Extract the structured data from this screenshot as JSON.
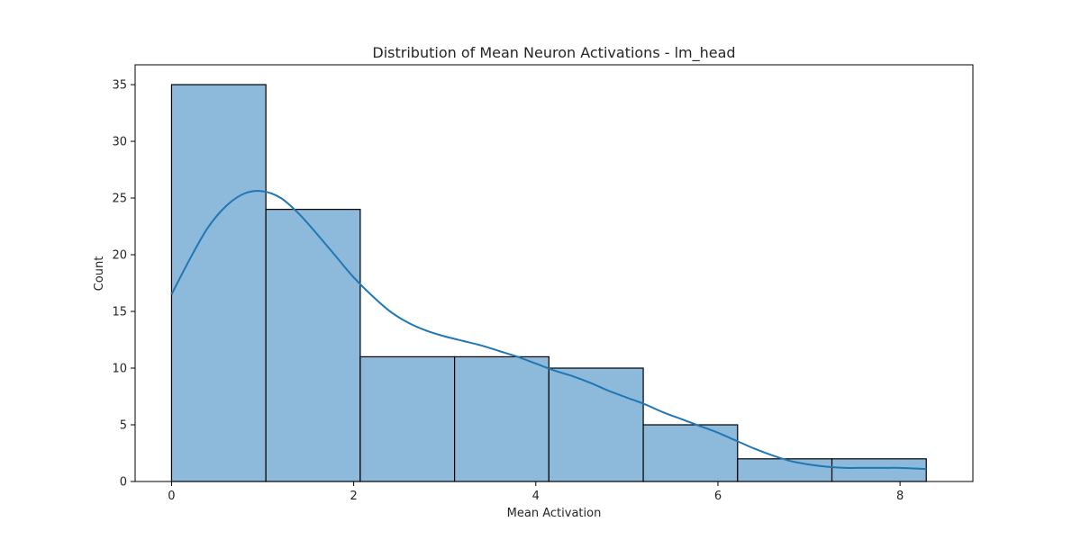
{
  "chart_data": {
    "type": "bar",
    "title": "Distribution of Mean Neuron Activations - lm_head",
    "xlabel": "Mean Activation",
    "ylabel": "Count",
    "xlim": [
      -0.4,
      8.8
    ],
    "ylim": [
      0,
      36.75
    ],
    "xticks": [
      0,
      2,
      4,
      6,
      8
    ],
    "yticks": [
      0,
      5,
      10,
      15,
      20,
      25,
      30,
      35
    ],
    "bin_edges": [
      0.0,
      1.036,
      2.072,
      3.108,
      4.144,
      5.18,
      6.216,
      7.252,
      8.288
    ],
    "counts": [
      35,
      24,
      11,
      11,
      10,
      5,
      2,
      2
    ],
    "kde": {
      "x": [
        0.0,
        0.2,
        0.4,
        0.6,
        0.8,
        1.0,
        1.2,
        1.4,
        1.6,
        1.8,
        2.0,
        2.2,
        2.4,
        2.6,
        2.8,
        3.0,
        3.2,
        3.4,
        3.6,
        3.8,
        4.0,
        4.2,
        4.4,
        4.6,
        4.8,
        5.0,
        5.2,
        5.4,
        5.6,
        5.8,
        6.0,
        6.2,
        6.4,
        6.6,
        6.8,
        7.0,
        7.2,
        7.4,
        7.6,
        7.8,
        8.0,
        8.288
      ],
      "y": [
        16.5,
        19.6,
        22.4,
        24.3,
        25.4,
        25.6,
        25.0,
        23.6,
        21.8,
        19.9,
        18.0,
        16.4,
        15.0,
        14.0,
        13.3,
        12.8,
        12.4,
        12.0,
        11.5,
        11.0,
        10.4,
        9.8,
        9.3,
        8.7,
        8.0,
        7.4,
        6.8,
        6.1,
        5.5,
        4.9,
        4.3,
        3.6,
        2.9,
        2.3,
        1.8,
        1.5,
        1.3,
        1.2,
        1.2,
        1.2,
        1.2,
        1.1
      ]
    },
    "colors": {
      "bar_fill": "#8db9db",
      "bar_edge": "#000000",
      "kde_line": "#1f77b4",
      "text": "#262626"
    },
    "grid": false,
    "legend": "none"
  }
}
